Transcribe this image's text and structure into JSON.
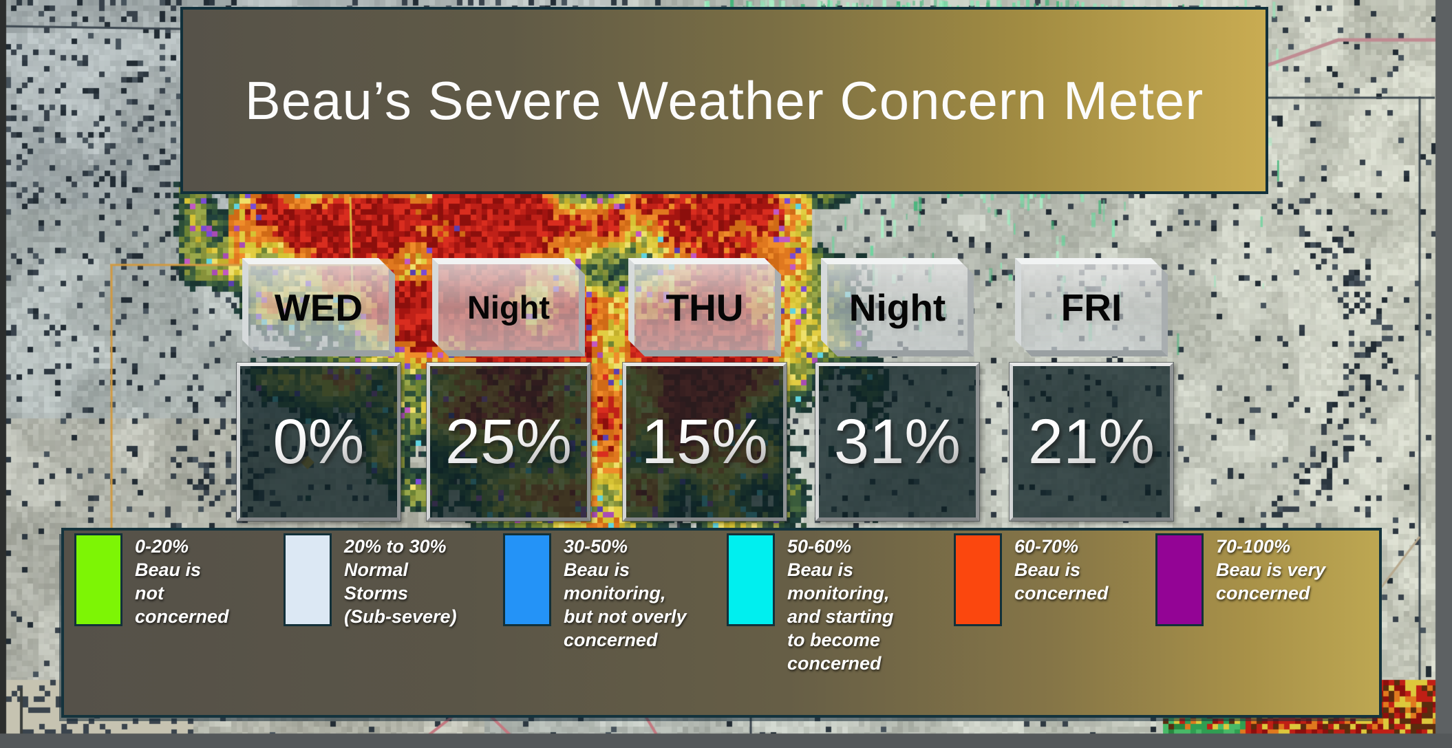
{
  "title": "Beau’s Severe Weather Concern Meter",
  "meter": {
    "cards": [
      {
        "label": "WED",
        "value": "0%"
      },
      {
        "label": "Night",
        "value": "25%"
      },
      {
        "label": "THU",
        "value": "15%"
      },
      {
        "label": "Night",
        "value": "31%"
      },
      {
        "label": "FRI",
        "value": "21%"
      }
    ]
  },
  "legend": {
    "items": [
      {
        "range": "0-20%",
        "desc": "Beau is\nnot\nconcerned",
        "color": "#7df505"
      },
      {
        "range": "20% to 30%",
        "desc": "Normal\nStorms\n(Sub-severe)",
        "color": "#dce8f4"
      },
      {
        "range": "30-50%",
        "desc": "Beau is\nmonitoring,\nbut not overly\nconcerned",
        "color": "#2493f7"
      },
      {
        "range": "50-60%",
        "desc": "Beau is\nmonitoring,\nand starting\nto become\nconcerned",
        "color": "#00efef"
      },
      {
        "range": "60-70%",
        "desc": "Beau is\nconcerned",
        "color": "#fb470e"
      },
      {
        "range": "70-100%",
        "desc": "Beau is very\nconcerned",
        "color": "#930495"
      }
    ]
  },
  "colors": {
    "banner_dark": "#565249",
    "banner_gold": "#c9ac52",
    "panel_border": "#14333d",
    "value_overlay": "rgba(12,31,35,0.76)"
  },
  "chart_data": {
    "type": "table",
    "title": "Beau’s Severe Weather Concern Meter",
    "categories": [
      "WED",
      "WED Night",
      "THU",
      "THU Night",
      "FRI"
    ],
    "values": [
      0,
      25,
      15,
      31,
      21
    ],
    "unit": "%",
    "legend_position": "bottom",
    "legend_bins": [
      {
        "range": [
          0,
          20
        ],
        "color": "#7df505",
        "label": "Beau is not concerned"
      },
      {
        "range": [
          20,
          30
        ],
        "color": "#dce8f4",
        "label": "Normal Storms (Sub-severe)"
      },
      {
        "range": [
          30,
          50
        ],
        "color": "#2493f7",
        "label": "Beau is monitoring, but not overly concerned"
      },
      {
        "range": [
          50,
          60
        ],
        "color": "#00efef",
        "label": "Beau is monitoring, and starting to become concerned"
      },
      {
        "range": [
          60,
          70
        ],
        "color": "#fb470e",
        "label": "Beau is concerned"
      },
      {
        "range": [
          70,
          100
        ],
        "color": "#930495",
        "label": "Beau is very concerned"
      }
    ]
  }
}
